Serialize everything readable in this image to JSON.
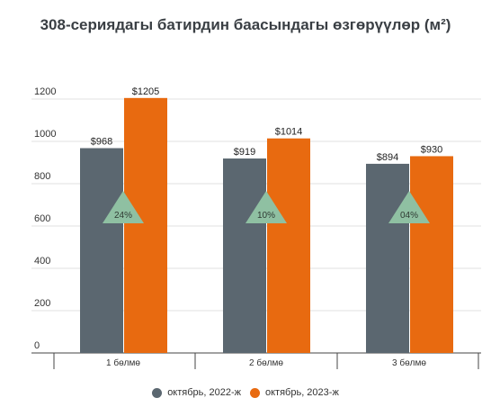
{
  "chart_data": {
    "type": "bar",
    "title": "308-сериядагы батирдин баасындагы өзгөрүүлөр (м²)",
    "categories": [
      "1 бөлмө",
      "2 бөлмө",
      "3 бөлмө"
    ],
    "series": [
      {
        "name": "октябрь, 2022-ж",
        "values": [
          968,
          919,
          894
        ],
        "labels": [
          "$968",
          "$919",
          "$894"
        ],
        "color": "#5b6770"
      },
      {
        "name": "октябрь, 2023-ж",
        "values": [
          1205,
          1014,
          930
        ],
        "labels": [
          "$1205",
          "$1014",
          "$930"
        ],
        "color": "#e86a10"
      }
    ],
    "change_labels": [
      "24%",
      "10%",
      "04%"
    ],
    "change_marker_color": "#8fc0a2",
    "ylim": [
      0,
      1200
    ],
    "yticks": [
      0,
      200,
      400,
      600,
      800,
      1000,
      1200
    ],
    "grid": true,
    "legend_position": "bottom"
  }
}
